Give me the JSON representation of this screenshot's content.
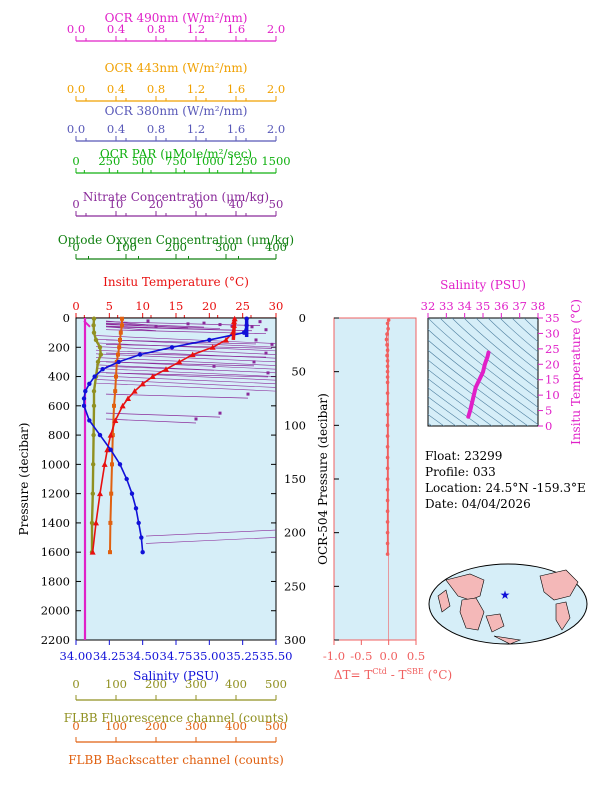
{
  "colors": {
    "ocr490": "#e020c8",
    "ocr443": "#f0a000",
    "ocr380": "#5858b8",
    "par": "#10b010",
    "nitrate": "#8a2a9a",
    "oxygen": "#108010",
    "temperature": "#e81010",
    "salinity": "#1010d8",
    "fluorescence": "#909020",
    "backscatter": "#e06010",
    "deltaT": "#f06060",
    "panel_bg": "#d6eef8",
    "contour": "#5080a0",
    "land": "#f4b8b8",
    "ocean": "#d6eef8"
  },
  "top_axes": [
    {
      "key": "ocr490",
      "label": "OCR 490nm (W/m²/nm)",
      "ticks": [
        "0.0",
        "0.4",
        "0.8",
        "1.2",
        "1.6",
        "2.0"
      ]
    },
    {
      "key": "ocr443",
      "label": "OCR 443nm (W/m²/nm)",
      "ticks": [
        "0.0",
        "0.4",
        "0.8",
        "1.2",
        "1.6",
        "2.0"
      ]
    },
    {
      "key": "ocr380",
      "label": "OCR 380nm (W/m²/nm)",
      "ticks": [
        "0.0",
        "0.4",
        "0.8",
        "1.2",
        "1.6",
        "2.0"
      ]
    },
    {
      "key": "par",
      "label": "OCR PAR (μMole/m²/sec)",
      "ticks": [
        "0",
        "250",
        "500",
        "750",
        "1000",
        "1250",
        "1500"
      ]
    },
    {
      "key": "nitrate",
      "label": "Nitrate Concentration (μm/kg)",
      "ticks": [
        "0",
        "10",
        "20",
        "30",
        "40",
        "50"
      ]
    },
    {
      "key": "oxygen",
      "label": "Optode Oxygen Concentration (μm/kg)",
      "ticks": [
        "0",
        "100",
        "200",
        "300",
        "400"
      ]
    },
    {
      "key": "temperature",
      "label": "Insitu Temperature (°C)",
      "ticks": [
        "0",
        "5",
        "10",
        "15",
        "20",
        "25",
        "30"
      ]
    }
  ],
  "bottom_axes": [
    {
      "key": "salinity",
      "label": "Salinity (PSU)",
      "ticks": [
        "34.00",
        "34.25",
        "34.50",
        "34.75",
        "35.00",
        "35.25",
        "35.50"
      ]
    },
    {
      "key": "fluorescence",
      "label": "FLBB Fluorescence channel (counts)",
      "ticks": [
        "0",
        "100",
        "200",
        "300",
        "400",
        "500"
      ]
    },
    {
      "key": "backscatter",
      "label": "FLBB Backscatter channel (counts)",
      "ticks": [
        "0",
        "100",
        "200",
        "300",
        "400",
        "500"
      ]
    }
  ],
  "info": {
    "float": "Float:  23299",
    "profile": "Profile:  033",
    "location": "Location:  24.5°N  -159.3°E",
    "date": "Date:  04/04/2026"
  },
  "chart_data": [
    {
      "type": "line",
      "title": "",
      "ylabel": "Pressure (decibar)",
      "ylim": [
        2200,
        0
      ],
      "y_ticks": [
        0,
        200,
        400,
        600,
        800,
        1000,
        1200,
        1400,
        1600,
        1800,
        2000,
        2200
      ],
      "series": [
        {
          "name": "Insitu Temperature (°C)",
          "xlim": [
            0,
            30
          ],
          "y": [
            5,
            25,
            50,
            100,
            150,
            200,
            250,
            300,
            350,
            400,
            450,
            500,
            550,
            600,
            700,
            800,
            900,
            1000,
            1200,
            1400,
            1600
          ],
          "x": [
            23.8,
            23.7,
            23.7,
            23.5,
            22.5,
            20.5,
            17.5,
            15.5,
            13.5,
            11.5,
            10.0,
            8.8,
            7.8,
            7.0,
            5.9,
            5.2,
            4.7,
            4.3,
            3.6,
            3.0,
            2.5
          ]
        },
        {
          "name": "Salinity (PSU)",
          "xlim": [
            34.0,
            35.5
          ],
          "y": [
            5,
            50,
            100,
            150,
            200,
            250,
            300,
            350,
            400,
            450,
            500,
            550,
            600,
            700,
            800,
            900,
            1000,
            1100,
            1200,
            1300,
            1400,
            1500,
            1600
          ],
          "x": [
            35.28,
            35.28,
            35.26,
            35.0,
            34.72,
            34.48,
            34.32,
            34.2,
            34.14,
            34.1,
            34.07,
            34.06,
            34.06,
            34.1,
            34.18,
            34.26,
            34.33,
            34.38,
            34.42,
            34.45,
            34.47,
            34.49,
            34.5
          ]
        },
        {
          "name": "FLBB Fluorescence channel (counts)",
          "xlim": [
            0,
            500
          ],
          "y": [
            5,
            50,
            100,
            150,
            200,
            250,
            300,
            400,
            500,
            600,
            800,
            1000,
            1200,
            1400,
            1600
          ],
          "x": [
            45,
            44,
            45,
            50,
            60,
            62,
            55,
            50,
            45,
            45,
            44,
            43,
            42,
            40,
            40
          ]
        },
        {
          "name": "FLBB Backscatter channel (counts)",
          "xlim": [
            0,
            500
          ],
          "y": [
            5,
            50,
            100,
            150,
            200,
            250,
            300,
            400,
            500,
            600,
            800,
            1000,
            1200,
            1400,
            1600
          ],
          "x": [
            115,
            115,
            112,
            110,
            108,
            105,
            102,
            100,
            98,
            95,
            92,
            90,
            88,
            86,
            85
          ]
        },
        {
          "name": "OCR 490nm (W/m²/nm)",
          "xlim": [
            0,
            2.0
          ],
          "y": [
            0,
            2200
          ],
          "x": [
            0.02,
            0.02
          ]
        }
      ]
    },
    {
      "type": "scatter",
      "title": "",
      "ylabel": "OCR-504 Pressure (decibar)",
      "xlabel": "ΔT= T^Ctd - T^SBE (°C)",
      "xlim": [
        -1.0,
        0.5
      ],
      "ylim": [
        300,
        0
      ],
      "x_ticks": [
        "-1.0",
        "-0.5",
        "0.0",
        "0.5"
      ],
      "y_ticks": [
        0,
        50,
        100,
        150,
        200,
        250,
        300
      ],
      "y": [
        2,
        5,
        10,
        15,
        20,
        25,
        30,
        35,
        40,
        45,
        50,
        55,
        60,
        70,
        80,
        90,
        100,
        110,
        120,
        130,
        140,
        150,
        160,
        170,
        180,
        190,
        200,
        210,
        220
      ],
      "x": [
        0.0,
        -0.02,
        -0.01,
        -0.03,
        -0.04,
        -0.03,
        -0.02,
        -0.03,
        -0.02,
        -0.02,
        -0.02,
        -0.02,
        -0.02,
        -0.02,
        -0.02,
        -0.02,
        -0.02,
        -0.02,
        -0.02,
        -0.02,
        -0.02,
        -0.02,
        -0.02,
        -0.02,
        -0.02,
        -0.02,
        -0.02,
        -0.02,
        -0.02
      ]
    },
    {
      "type": "line",
      "title": "",
      "xlabel": "Salinity (PSU)",
      "ylabel": "Insitu Temperature (°C)",
      "xlim": [
        32,
        38
      ],
      "ylim": [
        0,
        35
      ],
      "x_ticks": [
        "32",
        "33",
        "34",
        "35",
        "36",
        "37",
        "38"
      ],
      "y_ticks": [
        "0",
        "5",
        "10",
        "15",
        "20",
        "25",
        "30",
        "35"
      ],
      "series": [
        {
          "name": "",
          "x": [
            35.3,
            35.25,
            35.1,
            35.0,
            34.8,
            34.6,
            34.5,
            34.4,
            34.3,
            34.2
          ],
          "y": [
            23.8,
            22.5,
            20.0,
            17.5,
            15.0,
            12.5,
            10.0,
            7.5,
            5.0,
            3.0
          ]
        }
      ]
    }
  ]
}
